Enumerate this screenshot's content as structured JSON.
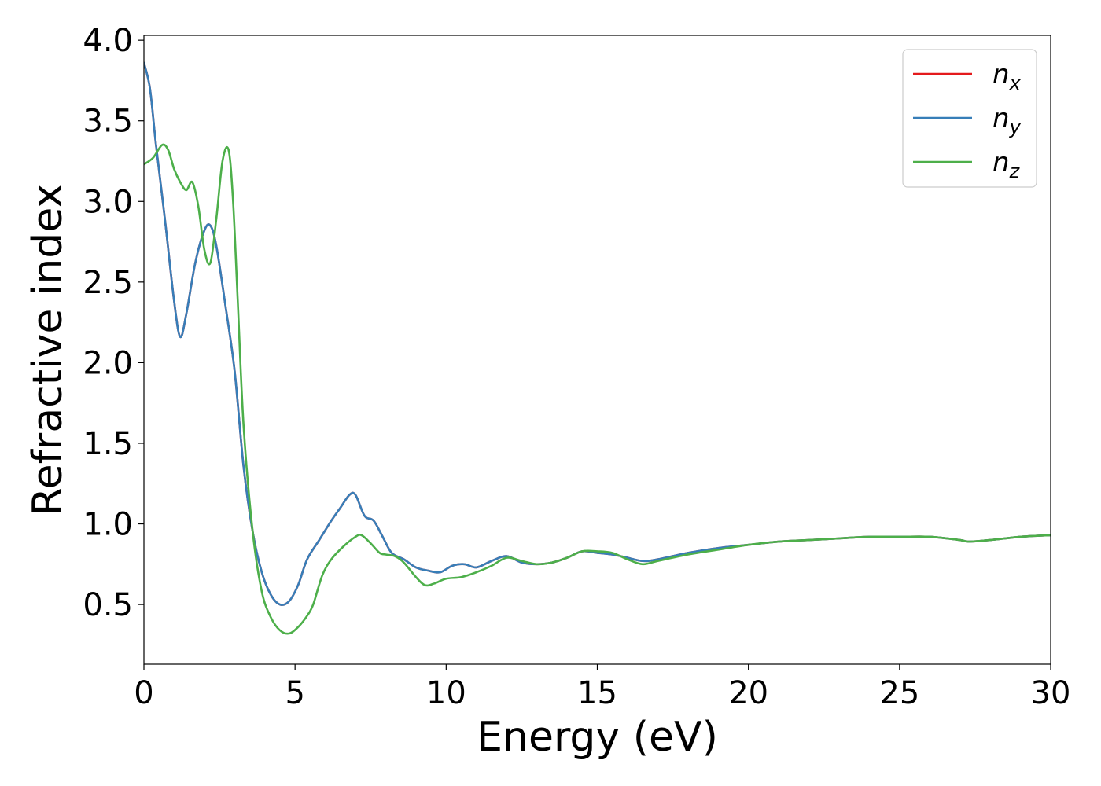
{
  "chart_data": {
    "type": "line",
    "xlabel": "Energy (eV)",
    "ylabel": "Refractive index",
    "xlim": [
      0,
      30
    ],
    "ylim": [
      0.13,
      4.03
    ],
    "xticks": [
      0,
      5,
      10,
      15,
      20,
      25,
      30
    ],
    "xtick_labels": [
      "0",
      "5",
      "10",
      "15",
      "20",
      "25",
      "30"
    ],
    "yticks": [
      0.5,
      1.0,
      1.5,
      2.0,
      2.5,
      3.0,
      3.5,
      4.0
    ],
    "ytick_labels": [
      "0.5",
      "1.0",
      "1.5",
      "2.0",
      "2.5",
      "3.0",
      "3.5",
      "4.0"
    ],
    "grid": false,
    "legend_position": "top-right",
    "series": [
      {
        "name": "n_x",
        "legend_base": "n",
        "legend_sub": "x",
        "color": "#e41a1c",
        "x": [
          0,
          0.2,
          0.4,
          0.7,
          1.0,
          1.2,
          1.4,
          1.7,
          2.0,
          2.2,
          2.4,
          2.7,
          3.0,
          3.3,
          3.6,
          3.9,
          4.2,
          4.5,
          4.8,
          5.1,
          5.4,
          5.8,
          6.2,
          6.5,
          6.8,
          7.0,
          7.3,
          7.6,
          7.9,
          8.2,
          8.6,
          9.0,
          9.4,
          9.8,
          10.2,
          10.6,
          11.0,
          11.5,
          12.0,
          12.5,
          13.0,
          13.5,
          14.0,
          14.5,
          15.0,
          15.5,
          16.0,
          16.5,
          17.0,
          18.0,
          19.0,
          20.0,
          21.0,
          22.0,
          23.0,
          24.0,
          25.0,
          26.0,
          27.0,
          27.3,
          28.0,
          29.0,
          30.0
        ],
        "y": [
          3.86,
          3.7,
          3.35,
          2.88,
          2.38,
          2.16,
          2.3,
          2.62,
          2.82,
          2.85,
          2.72,
          2.35,
          1.95,
          1.35,
          0.95,
          0.7,
          0.56,
          0.5,
          0.52,
          0.62,
          0.78,
          0.9,
          1.02,
          1.1,
          1.18,
          1.18,
          1.05,
          1.02,
          0.92,
          0.82,
          0.78,
          0.73,
          0.71,
          0.7,
          0.74,
          0.75,
          0.73,
          0.77,
          0.8,
          0.76,
          0.75,
          0.76,
          0.79,
          0.83,
          0.82,
          0.81,
          0.79,
          0.77,
          0.78,
          0.82,
          0.85,
          0.87,
          0.89,
          0.9,
          0.91,
          0.92,
          0.92,
          0.92,
          0.9,
          0.89,
          0.9,
          0.92,
          0.93
        ]
      },
      {
        "name": "n_y",
        "legend_base": "n",
        "legend_sub": "y",
        "color": "#377eb8",
        "x": [
          0,
          0.2,
          0.4,
          0.7,
          1.0,
          1.2,
          1.4,
          1.7,
          2.0,
          2.2,
          2.4,
          2.7,
          3.0,
          3.3,
          3.6,
          3.9,
          4.2,
          4.5,
          4.8,
          5.1,
          5.4,
          5.8,
          6.2,
          6.5,
          6.8,
          7.0,
          7.3,
          7.6,
          7.9,
          8.2,
          8.6,
          9.0,
          9.4,
          9.8,
          10.2,
          10.6,
          11.0,
          11.5,
          12.0,
          12.5,
          13.0,
          13.5,
          14.0,
          14.5,
          15.0,
          15.5,
          16.0,
          16.5,
          17.0,
          18.0,
          19.0,
          20.0,
          21.0,
          22.0,
          23.0,
          24.0,
          25.0,
          26.0,
          27.0,
          27.3,
          28.0,
          29.0,
          30.0
        ],
        "y": [
          3.86,
          3.7,
          3.35,
          2.88,
          2.38,
          2.16,
          2.3,
          2.62,
          2.82,
          2.85,
          2.72,
          2.35,
          1.95,
          1.35,
          0.95,
          0.7,
          0.56,
          0.5,
          0.52,
          0.62,
          0.78,
          0.9,
          1.02,
          1.1,
          1.18,
          1.18,
          1.05,
          1.02,
          0.92,
          0.82,
          0.78,
          0.73,
          0.71,
          0.7,
          0.74,
          0.75,
          0.73,
          0.77,
          0.8,
          0.76,
          0.75,
          0.76,
          0.79,
          0.83,
          0.82,
          0.81,
          0.79,
          0.77,
          0.78,
          0.82,
          0.85,
          0.87,
          0.89,
          0.9,
          0.91,
          0.92,
          0.92,
          0.92,
          0.9,
          0.89,
          0.9,
          0.92,
          0.93
        ]
      },
      {
        "name": "n_z",
        "legend_base": "n",
        "legend_sub": "z",
        "color": "#4daf4a",
        "x": [
          0,
          0.3,
          0.6,
          0.8,
          1.0,
          1.2,
          1.4,
          1.6,
          1.8,
          2.0,
          2.2,
          2.4,
          2.6,
          2.8,
          2.95,
          3.1,
          3.3,
          3.6,
          3.9,
          4.2,
          4.5,
          4.8,
          5.1,
          5.4,
          5.6,
          5.9,
          6.2,
          6.6,
          7.0,
          7.2,
          7.5,
          7.8,
          8.0,
          8.3,
          8.6,
          9.0,
          9.3,
          9.6,
          10.0,
          10.5,
          11.0,
          11.5,
          12.0,
          12.5,
          13.0,
          13.5,
          14.0,
          14.5,
          15.0,
          15.5,
          16.0,
          16.5,
          17.0,
          18.0,
          19.0,
          20.0,
          21.0,
          22.0,
          23.0,
          24.0,
          25.0,
          26.0,
          27.0,
          27.3,
          28.0,
          29.0,
          30.0
        ],
        "y": [
          3.23,
          3.27,
          3.35,
          3.32,
          3.2,
          3.12,
          3.07,
          3.12,
          2.97,
          2.7,
          2.62,
          2.9,
          3.25,
          3.32,
          3.0,
          2.4,
          1.6,
          0.95,
          0.58,
          0.42,
          0.34,
          0.32,
          0.36,
          0.43,
          0.5,
          0.68,
          0.78,
          0.86,
          0.92,
          0.93,
          0.88,
          0.82,
          0.81,
          0.8,
          0.76,
          0.67,
          0.62,
          0.63,
          0.66,
          0.67,
          0.7,
          0.74,
          0.79,
          0.77,
          0.75,
          0.76,
          0.79,
          0.83,
          0.83,
          0.82,
          0.78,
          0.75,
          0.77,
          0.81,
          0.84,
          0.87,
          0.89,
          0.9,
          0.91,
          0.92,
          0.92,
          0.92,
          0.9,
          0.89,
          0.9,
          0.92,
          0.93
        ]
      }
    ]
  }
}
